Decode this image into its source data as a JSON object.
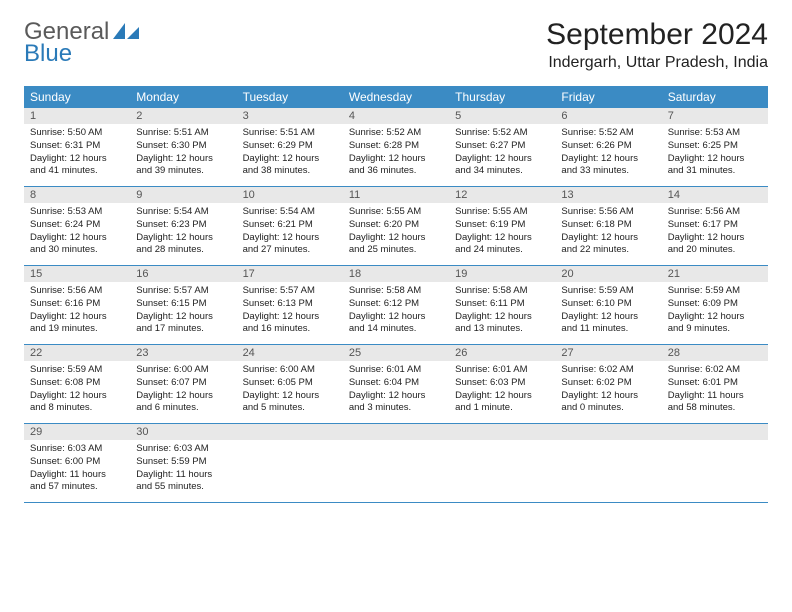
{
  "logo": {
    "text_general": "General",
    "text_blue": "Blue"
  },
  "title": "September 2024",
  "location": "Indergarh, Uttar Pradesh, India",
  "colors": {
    "header_bg": "#3b8bc4",
    "header_text": "#ffffff",
    "daynum_bg": "#e8e8e8",
    "border": "#3b8bc4",
    "logo_gray": "#5a5a5a",
    "logo_blue": "#2a7ab8"
  },
  "day_names": [
    "Sunday",
    "Monday",
    "Tuesday",
    "Wednesday",
    "Thursday",
    "Friday",
    "Saturday"
  ],
  "days": [
    {
      "n": "1",
      "sr": "5:50 AM",
      "ss": "6:31 PM",
      "dl": "12 hours and 41 minutes."
    },
    {
      "n": "2",
      "sr": "5:51 AM",
      "ss": "6:30 PM",
      "dl": "12 hours and 39 minutes."
    },
    {
      "n": "3",
      "sr": "5:51 AM",
      "ss": "6:29 PM",
      "dl": "12 hours and 38 minutes."
    },
    {
      "n": "4",
      "sr": "5:52 AM",
      "ss": "6:28 PM",
      "dl": "12 hours and 36 minutes."
    },
    {
      "n": "5",
      "sr": "5:52 AM",
      "ss": "6:27 PM",
      "dl": "12 hours and 34 minutes."
    },
    {
      "n": "6",
      "sr": "5:52 AM",
      "ss": "6:26 PM",
      "dl": "12 hours and 33 minutes."
    },
    {
      "n": "7",
      "sr": "5:53 AM",
      "ss": "6:25 PM",
      "dl": "12 hours and 31 minutes."
    },
    {
      "n": "8",
      "sr": "5:53 AM",
      "ss": "6:24 PM",
      "dl": "12 hours and 30 minutes."
    },
    {
      "n": "9",
      "sr": "5:54 AM",
      "ss": "6:23 PM",
      "dl": "12 hours and 28 minutes."
    },
    {
      "n": "10",
      "sr": "5:54 AM",
      "ss": "6:21 PM",
      "dl": "12 hours and 27 minutes."
    },
    {
      "n": "11",
      "sr": "5:55 AM",
      "ss": "6:20 PM",
      "dl": "12 hours and 25 minutes."
    },
    {
      "n": "12",
      "sr": "5:55 AM",
      "ss": "6:19 PM",
      "dl": "12 hours and 24 minutes."
    },
    {
      "n": "13",
      "sr": "5:56 AM",
      "ss": "6:18 PM",
      "dl": "12 hours and 22 minutes."
    },
    {
      "n": "14",
      "sr": "5:56 AM",
      "ss": "6:17 PM",
      "dl": "12 hours and 20 minutes."
    },
    {
      "n": "15",
      "sr": "5:56 AM",
      "ss": "6:16 PM",
      "dl": "12 hours and 19 minutes."
    },
    {
      "n": "16",
      "sr": "5:57 AM",
      "ss": "6:15 PM",
      "dl": "12 hours and 17 minutes."
    },
    {
      "n": "17",
      "sr": "5:57 AM",
      "ss": "6:13 PM",
      "dl": "12 hours and 16 minutes."
    },
    {
      "n": "18",
      "sr": "5:58 AM",
      "ss": "6:12 PM",
      "dl": "12 hours and 14 minutes."
    },
    {
      "n": "19",
      "sr": "5:58 AM",
      "ss": "6:11 PM",
      "dl": "12 hours and 13 minutes."
    },
    {
      "n": "20",
      "sr": "5:59 AM",
      "ss": "6:10 PM",
      "dl": "12 hours and 11 minutes."
    },
    {
      "n": "21",
      "sr": "5:59 AM",
      "ss": "6:09 PM",
      "dl": "12 hours and 9 minutes."
    },
    {
      "n": "22",
      "sr": "5:59 AM",
      "ss": "6:08 PM",
      "dl": "12 hours and 8 minutes."
    },
    {
      "n": "23",
      "sr": "6:00 AM",
      "ss": "6:07 PM",
      "dl": "12 hours and 6 minutes."
    },
    {
      "n": "24",
      "sr": "6:00 AM",
      "ss": "6:05 PM",
      "dl": "12 hours and 5 minutes."
    },
    {
      "n": "25",
      "sr": "6:01 AM",
      "ss": "6:04 PM",
      "dl": "12 hours and 3 minutes."
    },
    {
      "n": "26",
      "sr": "6:01 AM",
      "ss": "6:03 PM",
      "dl": "12 hours and 1 minute."
    },
    {
      "n": "27",
      "sr": "6:02 AM",
      "ss": "6:02 PM",
      "dl": "12 hours and 0 minutes."
    },
    {
      "n": "28",
      "sr": "6:02 AM",
      "ss": "6:01 PM",
      "dl": "11 hours and 58 minutes."
    },
    {
      "n": "29",
      "sr": "6:03 AM",
      "ss": "6:00 PM",
      "dl": "11 hours and 57 minutes."
    },
    {
      "n": "30",
      "sr": "6:03 AM",
      "ss": "5:59 PM",
      "dl": "11 hours and 55 minutes."
    }
  ],
  "labels": {
    "sunrise": "Sunrise:",
    "sunset": "Sunset:",
    "daylight": "Daylight:"
  }
}
